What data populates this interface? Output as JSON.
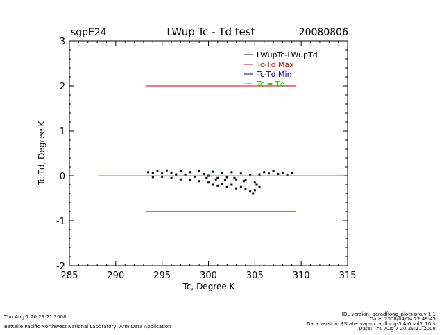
{
  "header": {
    "station": "sgpE24",
    "title": "LWup Tc - Td test",
    "date": "20080806"
  },
  "chart_data": {
    "type": "scatter",
    "xlabel": "Tc, Degree K",
    "ylabel": "Tc-Td, Degree K",
    "xlim": [
      285,
      315
    ],
    "ylim": [
      -2,
      3
    ],
    "xticks": [
      "285",
      "290",
      "295",
      "300",
      "305",
      "310",
      "315"
    ],
    "yticks": [
      "-2",
      "-1",
      "0",
      "1",
      "2",
      "3"
    ],
    "series": [
      {
        "name": "LWupTc-LWupTd",
        "color": "#000000",
        "kind": "points",
        "points": [
          [
            293.5,
            0.08
          ],
          [
            294.0,
            0.06
          ],
          [
            294.5,
            0.1
          ],
          [
            295.0,
            0.05
          ],
          [
            295.5,
            0.12
          ],
          [
            296.0,
            0.07
          ],
          [
            296.5,
            0.03
          ],
          [
            297.0,
            0.1
          ],
          [
            297.5,
            0.02
          ],
          [
            298.0,
            0.08
          ],
          [
            298.5,
            -0.02
          ],
          [
            299.0,
            0.1
          ],
          [
            299.5,
            0.04
          ],
          [
            300.0,
            0.0
          ],
          [
            300.5,
            0.09
          ],
          [
            301.0,
            -0.05
          ],
          [
            301.5,
            0.06
          ],
          [
            302.0,
            -0.03
          ],
          [
            302.5,
            0.08
          ],
          [
            303.0,
            -0.08
          ],
          [
            303.5,
            0.05
          ],
          [
            304.0,
            -0.1
          ],
          [
            304.5,
            0.02
          ],
          [
            305.0,
            -0.15
          ],
          [
            305.5,
            0.03
          ],
          [
            306.0,
            0.08
          ],
          [
            306.5,
            0.05
          ],
          [
            307.0,
            0.1
          ],
          [
            307.5,
            0.04
          ],
          [
            308.0,
            0.07
          ],
          [
            308.5,
            0.02
          ],
          [
            309.0,
            0.06
          ],
          [
            294.0,
            -0.03
          ],
          [
            295.0,
            -0.02
          ],
          [
            296.0,
            -0.05
          ],
          [
            297.0,
            -0.08
          ],
          [
            298.0,
            -0.1
          ],
          [
            299.0,
            -0.12
          ],
          [
            300.0,
            -0.15
          ],
          [
            300.5,
            -0.2
          ],
          [
            301.0,
            -0.22
          ],
          [
            301.5,
            -0.18
          ],
          [
            302.0,
            -0.25
          ],
          [
            302.5,
            -0.2
          ],
          [
            303.0,
            -0.28
          ],
          [
            303.5,
            -0.25
          ],
          [
            304.0,
            -0.3
          ],
          [
            304.5,
            -0.35
          ],
          [
            305.0,
            -0.32
          ],
          [
            305.5,
            -0.25
          ],
          [
            304.8,
            -0.4
          ],
          [
            305.2,
            -0.2
          ],
          [
            303.8,
            -0.12
          ],
          [
            302.8,
            -0.05
          ],
          [
            301.8,
            -0.1
          ],
          [
            300.8,
            -0.08
          ],
          [
            299.8,
            -0.05
          ]
        ]
      },
      {
        "name": "Tc-Td Max",
        "color": "#cc0000",
        "kind": "line",
        "x": [
          293.3,
          309.4
        ],
        "y": [
          2.0,
          2.0
        ]
      },
      {
        "name": "Tc-Td Min",
        "color": "#000099",
        "kind": "line",
        "x": [
          293.3,
          309.4
        ],
        "y": [
          -0.8,
          -0.8
        ]
      },
      {
        "name": "Tc = Td",
        "color": "#00cc00",
        "kind": "line",
        "x": [
          288.2,
          314.6
        ],
        "y": [
          0.0,
          0.0
        ]
      }
    ],
    "legend_position": "top-right"
  },
  "footer": {
    "left_date": "Thu Aug  7 20:29:21 2008",
    "institution": "Battelle Pacific Northwest National Laboratory, Arm Data Application",
    "idl_version": "IDL version: qcradflong_plots.pro,v 1.1",
    "date_line": "Date: 2008/04/04 22:49:45",
    "data_version": "Data version: $State: vap-qcradflong-3.4-0.sol5_10 $",
    "right_date": "Date: Thu Aug  7 20:29:11 2008"
  }
}
